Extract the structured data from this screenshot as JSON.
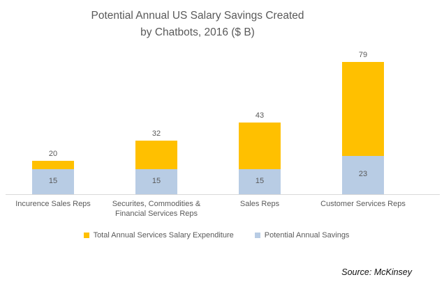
{
  "title": {
    "lines": [
      "Potential Annual US Salary Savings Created",
      "by Chatbots, 2016 ($ B)"
    ]
  },
  "source": "Source: McKinsey",
  "colors": {
    "expenditure": "#ffc000",
    "savings": "#b8cce4",
    "text": "#595959",
    "axis": "#d9d9d9"
  },
  "legend": [
    {
      "label": "Total Annual Services Salary Expenditure",
      "color": "#ffc000"
    },
    {
      "label": "Potential Annual Savings",
      "color": "#b8cce4"
    }
  ],
  "chart_data": {
    "type": "bar",
    "stacked": true,
    "title": "Potential Annual US Salary Savings Created by Chatbots, 2016 ($ B)",
    "categories": [
      "Incurence Sales Reps",
      "Securites, Commodities & Financial Services Reps",
      "Sales Reps",
      "Customer Services Reps"
    ],
    "totals": [
      20,
      32,
      43,
      79
    ],
    "series": [
      {
        "name": "Potential Annual Savings",
        "color": "#b8cce4",
        "values": [
          15,
          15,
          15,
          23
        ]
      },
      {
        "name": "Total Annual Services Salary Expenditure",
        "color": "#ffc000",
        "values": [
          5,
          17,
          28,
          56
        ]
      }
    ],
    "bar_labels": {
      "above_bars": [
        20,
        32,
        43,
        79
      ],
      "inside_savings_segment": [
        15,
        15,
        15,
        23
      ]
    },
    "ylim": [
      0,
      85
    ],
    "gridlines": false,
    "legend_position": "bottom"
  }
}
